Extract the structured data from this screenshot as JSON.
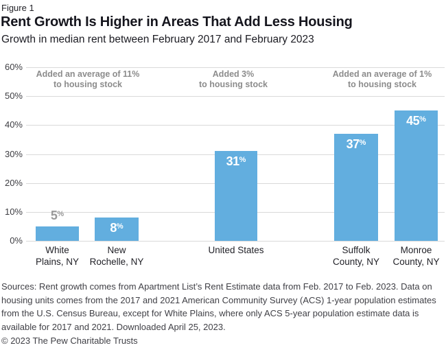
{
  "header": {
    "figure_label": "Figure 1",
    "title": "Rent Growth Is Higher in Areas That Add Less Housing",
    "subtitle": "Growth in median rent between February 2017 and February 2023"
  },
  "chart_data": {
    "type": "bar",
    "title": "Rent Growth Is Higher in Areas That Add Less Housing",
    "subtitle": "Growth in median rent between February 2017 and February 2023",
    "categories": [
      "White Plains, NY",
      "New Rochelle, NY",
      "United States",
      "Suffolk County, NY",
      "Monroe County, NY"
    ],
    "category_label_lines": [
      "White\nPlains, NY",
      "New\nRochelle, NY",
      "United States",
      "Suffolk\nCounty, NY",
      "Monroe\nCounty, NY"
    ],
    "values": [
      5,
      8,
      31,
      37,
      45
    ],
    "value_labels": [
      "5%",
      "8%",
      "31%",
      "37%",
      "45%"
    ],
    "xlabel": "",
    "ylabel": "",
    "ylim": [
      0,
      60
    ],
    "ytick_interval": 10,
    "yticks": [
      "60%",
      "50%",
      "40%",
      "30%",
      "20%",
      "10%",
      "0%"
    ],
    "grid": true,
    "legend_position": "none",
    "annotations": [
      {
        "text": "Added an average of 11%\nto housing stock",
        "applies_to": [
          "White Plains, NY",
          "New Rochelle, NY"
        ]
      },
      {
        "text": "Added 3%\nto housing stock",
        "applies_to": [
          "United States"
        ]
      },
      {
        "text": "Added an average of 1%\nto housing stock",
        "applies_to": [
          "Suffolk County, NY",
          "Monroe County, NY"
        ]
      }
    ]
  },
  "colors": {
    "bar": "#62AEDF",
    "gridline": "#D9D9D9",
    "annotation_text": "#8C8C8C",
    "outside_value_label": "#999999",
    "inside_value_label": "#FFFFFF",
    "title_text": "#15151D",
    "body_text": "#404046"
  },
  "footer": {
    "sources": "Sources: Rent growth comes from Apartment List’s Rent Estimate data from Feb. 2017 to Feb. 2023. Data on housing units comes from the 2017 and 2021 American Community Survey (ACS) 1-year population estimates from the U.S. Census Bureau, except for White Plains, where only ACS 5-year population estimate data is available for 2017 and 2021. Downloaded April 25, 2023.",
    "copyright": "© 2023 The Pew Charitable Trusts"
  }
}
